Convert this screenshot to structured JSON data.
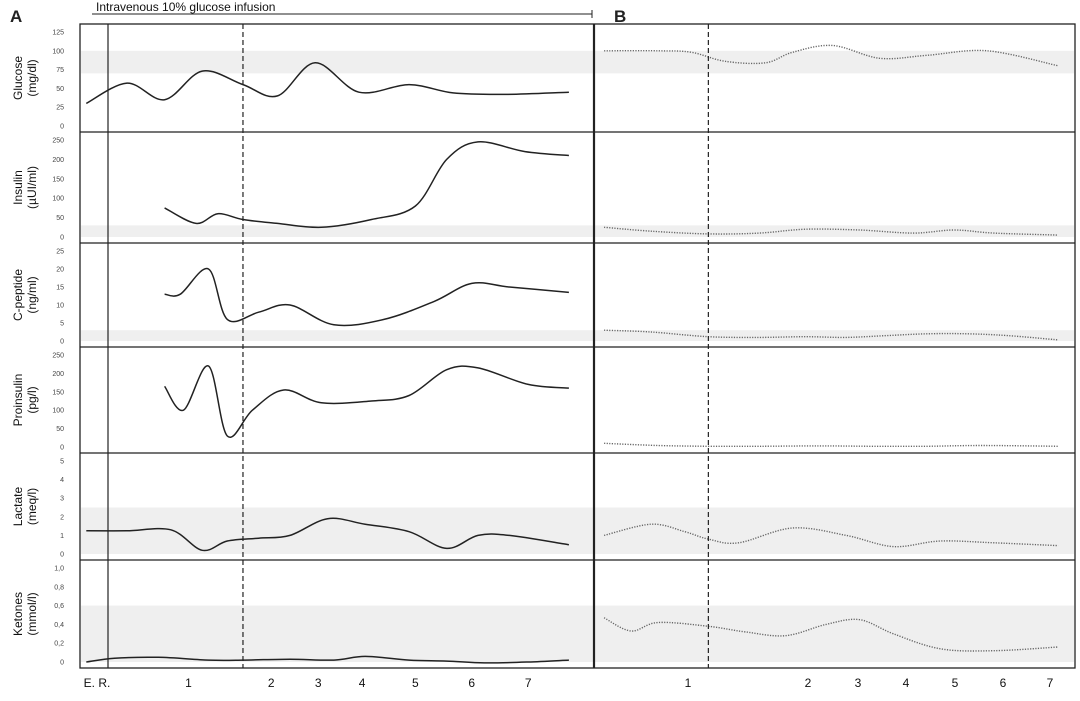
{
  "panels": [
    {
      "id": "A",
      "letter": "A"
    },
    {
      "id": "B",
      "letter": "B"
    }
  ],
  "infusion": {
    "label": "Intravenous 10% glucose infusion"
  },
  "x_axis": {
    "A_labels": [
      "E. R.",
      "1",
      "2",
      "3",
      "4",
      "5",
      "6",
      "7"
    ],
    "B_labels": [
      "1",
      "2",
      "3",
      "4",
      "5",
      "6",
      "7"
    ]
  },
  "chart_data": {
    "type": "line",
    "x_unit": "day",
    "panels": {
      "A": {
        "x_range": [
          -0.85,
          7.35
        ],
        "dashed_vline_x": 1.75,
        "solid_vline_x": 0,
        "line_style": "solid"
      },
      "B": {
        "x_range": [
          0.05,
          7.2
        ],
        "dashed_vline_x": 1.75,
        "line_style": "dotted"
      }
    },
    "rows": [
      {
        "ylabel_lines": [
          "Glucose",
          "(mg/dl)"
        ],
        "ticks": [
          "0",
          "25",
          "50",
          "75",
          "100",
          "125"
        ],
        "tick_values": [
          0,
          25,
          50,
          75,
          100,
          125
        ],
        "ylim": [
          0,
          125
        ],
        "reference_band": [
          70,
          100
        ],
        "series": {
          "A": {
            "x": [
              -0.75,
              -0.1,
              0.5,
              1.1,
              1.75,
              2.3,
              2.9,
              3.6,
              4.4,
              5.1,
              5.9,
              6.95
            ],
            "y": [
              30,
              57,
              35,
              73,
              55,
              40,
              84,
              45,
              55,
              44,
              42,
              45
            ]
          },
          "B": {
            "x": [
              0.2,
              1.0,
              1.5,
              2.0,
              2.6,
              3.0,
              3.6,
              4.3,
              5.0,
              5.9,
              6.95
            ],
            "y": [
              100,
              100,
              98,
              86,
              84,
              98,
              107,
              90,
              94,
              100,
              80
            ]
          }
        }
      },
      {
        "ylabel_lines": [
          "Insulin",
          "(µUI/ml)"
        ],
        "ticks": [
          "0",
          "50",
          "100",
          "150",
          "200",
          "250"
        ],
        "tick_values": [
          0,
          50,
          100,
          150,
          200,
          250
        ],
        "ylim": [
          0,
          250
        ],
        "reference_band": [
          0,
          30
        ],
        "series": {
          "A": {
            "x": [
              0.5,
              1.0,
              1.35,
              1.75,
              2.3,
              3.0,
              3.8,
              4.5,
              5.0,
              5.5,
              6.25,
              6.95
            ],
            "y": [
              75,
              35,
              60,
              45,
              35,
              25,
              45,
              80,
              200,
              245,
              220,
              210
            ]
          },
          "B": {
            "x": [
              0.2,
              0.9,
              1.75,
              2.5,
              3.2,
              4.0,
              4.8,
              5.4,
              6.0,
              6.95
            ],
            "y": [
              25,
              15,
              8,
              10,
              20,
              18,
              10,
              18,
              10,
              5
            ]
          }
        }
      },
      {
        "ylabel_lines": [
          "C-peptide",
          "(ng/ml)"
        ],
        "ticks": [
          "0",
          "5",
          "10",
          "15",
          "20",
          "25"
        ],
        "tick_values": [
          0,
          5,
          10,
          15,
          20,
          25
        ],
        "ylim": [
          0,
          25
        ],
        "reference_band": [
          0,
          3
        ],
        "series": {
          "A": {
            "x": [
              0.5,
              0.75,
              1.2,
              1.5,
              2.0,
              2.5,
              3.2,
              4.0,
              4.8,
              5.4,
              6.0,
              6.95
            ],
            "y": [
              13,
              13,
              20,
              6,
              8,
              10,
              4.5,
              6,
              11,
              16,
              15,
              13.5
            ]
          },
          "B": {
            "x": [
              0.2,
              0.9,
              1.75,
              2.5,
              3.2,
              3.8,
              4.4,
              5.0,
              5.6,
              6.2,
              6.95
            ],
            "y": [
              3,
              2.5,
              1.2,
              1,
              1.2,
              1,
              1.5,
              2,
              2,
              1.5,
              0.3
            ]
          }
        }
      },
      {
        "ylabel_lines": [
          "Proinsulin",
          "(pg/l)"
        ],
        "ticks": [
          "0",
          "50",
          "100",
          "150",
          "200",
          "250"
        ],
        "tick_values": [
          0,
          50,
          100,
          150,
          200,
          250
        ],
        "ylim": [
          0,
          250
        ],
        "reference_band": null,
        "series": {
          "A": {
            "x": [
              0.5,
              0.8,
              1.2,
              1.5,
              1.9,
              2.4,
              3.0,
              3.8,
              4.4,
              5.0,
              5.5,
              6.3,
              6.95
            ],
            "y": [
              165,
              100,
              220,
              30,
              100,
              155,
              120,
              125,
              140,
              210,
              215,
              170,
              160
            ]
          },
          "B": {
            "x": [
              0.2,
              1.0,
              1.75,
              2.5,
              3.4,
              4.2,
              5.0,
              5.8,
              6.95
            ],
            "y": [
              10,
              4,
              2,
              2,
              3,
              2,
              2,
              4,
              2
            ]
          }
        }
      },
      {
        "ylabel_lines": [
          "Lactate",
          "(meq/l)"
        ],
        "ticks": [
          "0",
          "1",
          "2",
          "3",
          "4",
          "5"
        ],
        "tick_values": [
          0,
          1,
          2,
          3,
          4,
          5
        ],
        "ylim": [
          0,
          5
        ],
        "reference_band": [
          0,
          2.5
        ],
        "series": {
          "A": {
            "x": [
              -0.75,
              -0.1,
              0.6,
              1.1,
              1.5,
              2.0,
              2.5,
              3.1,
              3.7,
              4.4,
              5.0,
              5.5,
              6.0,
              6.95
            ],
            "y": [
              1.25,
              1.25,
              1.3,
              0.2,
              0.7,
              0.85,
              1.0,
              1.9,
              1.6,
              1.2,
              0.3,
              1.0,
              1.0,
              0.5
            ]
          },
          "B": {
            "x": [
              0.2,
              0.9,
              1.4,
              1.75,
              2.2,
              3.0,
              3.8,
              4.5,
              5.2,
              6.0,
              6.95
            ],
            "y": [
              1.0,
              1.6,
              1.2,
              0.8,
              0.6,
              1.4,
              1.0,
              0.4,
              0.7,
              0.6,
              0.45
            ]
          }
        }
      },
      {
        "ylabel_lines": [
          "Ketones",
          "(mmol/l)"
        ],
        "ticks": [
          "0",
          "0,2",
          "0,4",
          "0,6",
          "0,8",
          "1,0"
        ],
        "tick_values": [
          0,
          0.2,
          0.4,
          0.6,
          0.8,
          1.0
        ],
        "ylim": [
          0,
          1.0
        ],
        "reference_band": [
          0,
          0.6
        ],
        "series": {
          "A": {
            "x": [
              -0.75,
              -0.3,
              0.4,
              1.2,
              1.75,
              2.5,
              3.2,
              3.7,
              4.4,
              5.0,
              5.6,
              6.3,
              6.95
            ],
            "y": [
              0.0,
              0.04,
              0.05,
              0.02,
              0.02,
              0.03,
              0.02,
              0.06,
              0.02,
              0.01,
              -0.01,
              0.0,
              0.02
            ]
          },
          "B": {
            "x": [
              0.2,
              0.6,
              1.0,
              1.75,
              2.3,
              2.9,
              3.5,
              4.0,
              4.5,
              5.2,
              6.0,
              6.95
            ],
            "y": [
              0.47,
              0.33,
              0.42,
              0.38,
              0.32,
              0.28,
              0.4,
              0.45,
              0.3,
              0.14,
              0.12,
              0.16
            ]
          }
        }
      }
    ]
  }
}
